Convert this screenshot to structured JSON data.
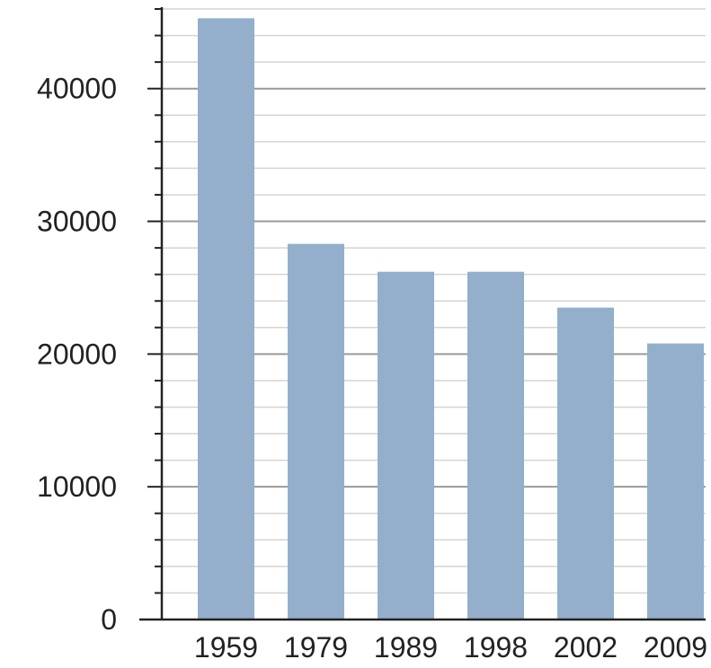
{
  "chart_data": {
    "type": "bar",
    "categories": [
      "1959",
      "1979",
      "1989",
      "1998",
      "2002",
      "2009"
    ],
    "values": [
      45300,
      28300,
      26200,
      26200,
      23500,
      20800
    ],
    "title": "",
    "xlabel": "",
    "ylabel": "",
    "ylim": [
      0,
      46000
    ],
    "yticks": [
      0,
      10000,
      20000,
      30000,
      40000
    ],
    "y_minor_step": 2000,
    "grid": true,
    "legend": "none",
    "colors": {
      "bar": "#93afcb",
      "major_grid": "#9a9a9a",
      "minor_grid": "#d4d4d4",
      "axis": "#222222"
    }
  }
}
